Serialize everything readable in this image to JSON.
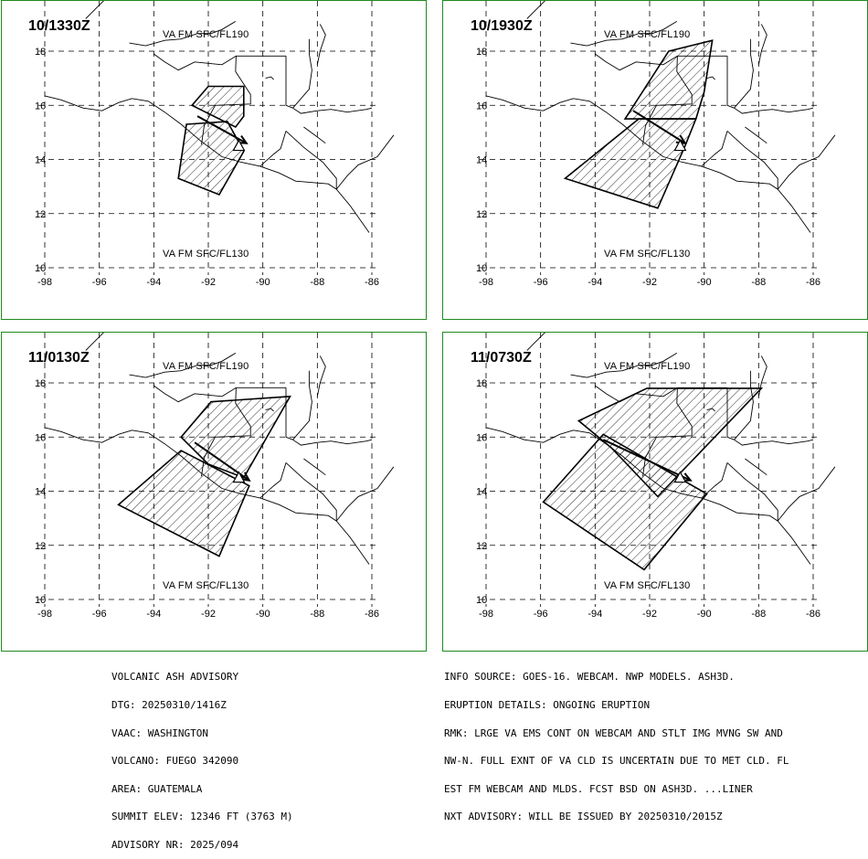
{
  "panels": [
    {
      "time": "10/1330Z",
      "upper_layer": "VA FM SFC/FL190",
      "lower_layer": "VA FM SFC/FL130",
      "upper_poly": [
        [
          -92.6,
          16.0
        ],
        [
          -92.0,
          16.7
        ],
        [
          -90.7,
          16.7
        ],
        [
          -90.7,
          15.6
        ],
        [
          -91.0,
          15.2
        ]
      ],
      "lower_poly": [
        [
          -92.8,
          15.3
        ],
        [
          -91.3,
          15.4
        ],
        [
          -90.7,
          14.3
        ],
        [
          -91.6,
          12.7
        ],
        [
          -93.1,
          13.3
        ]
      ],
      "arrow": [
        [
          -92.4,
          15.6
        ],
        [
          -90.6,
          14.6
        ]
      ]
    },
    {
      "time": "10/1930Z",
      "upper_layer": "VA FM SFC/FL190",
      "lower_layer": "VA FM SFC/FL130",
      "upper_poly": [
        [
          -91.3,
          18.0
        ],
        [
          -89.7,
          18.4
        ],
        [
          -90.0,
          16.5
        ],
        [
          -90.3,
          15.5
        ],
        [
          -92.9,
          15.5
        ]
      ],
      "lower_poly": [
        [
          -92.4,
          15.5
        ],
        [
          -90.3,
          15.5
        ],
        [
          -90.7,
          14.5
        ],
        [
          -91.7,
          12.2
        ],
        [
          -95.1,
          13.3
        ]
      ],
      "arrow": [
        [
          -92.6,
          15.8
        ],
        [
          -90.7,
          14.6
        ]
      ]
    },
    {
      "time": "11/0130Z",
      "upper_layer": "VA FM SFC/FL190",
      "lower_layer": "VA FM SFC/FL130",
      "upper_poly": [
        [
          -93.0,
          16.0
        ],
        [
          -91.9,
          17.3
        ],
        [
          -89.0,
          17.5
        ],
        [
          -90.7,
          14.5
        ],
        [
          -92.0,
          15.0
        ]
      ],
      "lower_poly": [
        [
          -93.0,
          15.5
        ],
        [
          -90.5,
          14.2
        ],
        [
          -91.6,
          11.6
        ],
        [
          -95.3,
          13.5
        ]
      ],
      "arrow": [
        [
          -92.5,
          15.8
        ],
        [
          -90.5,
          14.4
        ]
      ]
    },
    {
      "time": "11/0730Z",
      "upper_layer": "VA FM SFC/FL190",
      "lower_layer": "VA FM SFC/FL130",
      "upper_poly": [
        [
          -94.6,
          16.6
        ],
        [
          -92.1,
          17.8
        ],
        [
          -87.9,
          17.8
        ],
        [
          -91.7,
          13.8
        ],
        [
          -93.4,
          15.6
        ]
      ],
      "lower_poly": [
        [
          -93.7,
          16.1
        ],
        [
          -89.9,
          13.9
        ],
        [
          -92.2,
          11.1
        ],
        [
          -95.9,
          13.6
        ]
      ],
      "arrow": [
        [
          -93.7,
          15.9
        ],
        [
          -90.5,
          14.4
        ]
      ]
    }
  ],
  "map": {
    "x_ticks": [
      "-98",
      "-96",
      "-94",
      "-92",
      "-90",
      "-88",
      "-86"
    ],
    "y_ticks": [
      "18",
      "16",
      "14",
      "12",
      "10"
    ],
    "grid_lon": [
      -98,
      -96,
      -94,
      -92,
      -90,
      -88,
      -86
    ],
    "grid_lat": [
      18,
      16,
      14,
      12,
      10
    ],
    "volcano": [
      -90.88,
      14.47
    ]
  },
  "advisory_left": [
    "VOLCANIC ASH ADVISORY",
    "DTG: 20250310/1416Z",
    "VAAC: WASHINGTON",
    "VOLCANO: FUEGO 342090",
    "AREA: GUATEMALA",
    "SUMMIT ELEV: 12346 FT (3763 M)",
    "ADVISORY NR: 2025/094"
  ],
  "advisory_right": [
    "INFO SOURCE: GOES-16. WEBCAM. NWP MODELS. ASH3D.",
    "ERUPTION DETAILS: ONGOING ERUPTION",
    "RMK: LRGE VA EMS CONT ON WEBCAM AND STLT IMG MVNG SW AND",
    "NW-N. FULL EXNT OF VA CLD IS UNCERTAIN DUE TO MET CLD. FL",
    "EST FM WEBCAM AND MLDS. FCST BSD ON ASH3D. ...LINER",
    "NXT ADVISORY: WILL BE ISSUED BY 20250310/2015Z"
  ]
}
